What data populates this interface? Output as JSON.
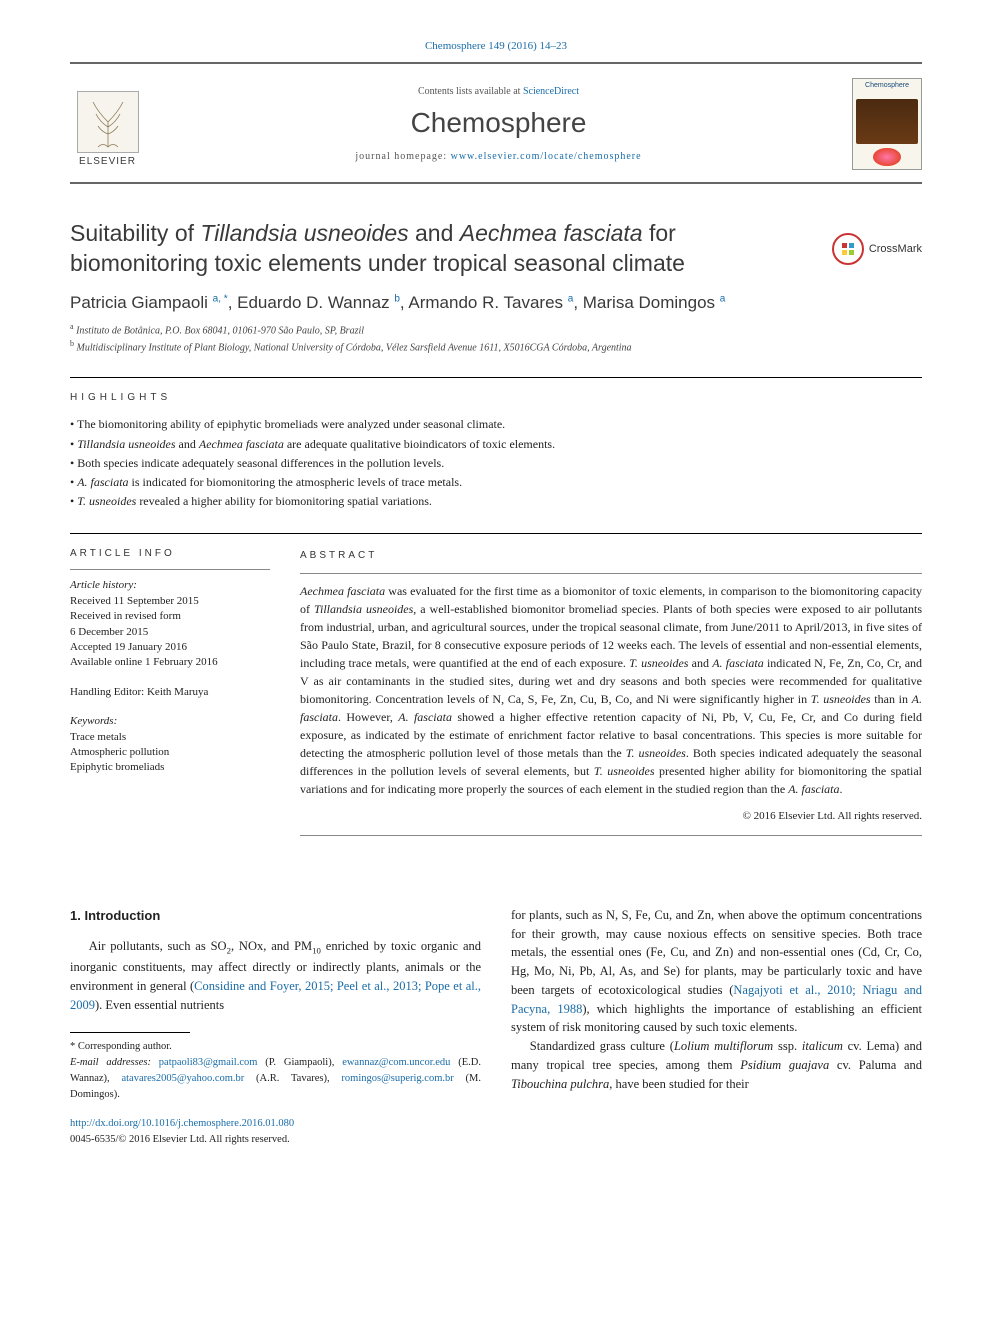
{
  "citation": "Chemosphere 149 (2016) 14–23",
  "masthead": {
    "contents_prefix": "Contents lists available at ",
    "contents_link": "ScienceDirect",
    "journal": "Chemosphere",
    "homepage_prefix": "journal homepage: ",
    "homepage_url": "www.elsevier.com/locate/chemosphere",
    "publisher_logo_text": "ELSEVIER",
    "cover_label": "Chemosphere"
  },
  "title": {
    "prefix": "Suitability of ",
    "sp1": "Tillandsia usneoides",
    "mid": " and ",
    "sp2": "Aechmea fasciata",
    "suffix": " for biomonitoring toxic elements under tropical seasonal climate"
  },
  "crossmark_label": "CrossMark",
  "authors_html": "Patricia Giampaoli <sup>a, *</sup>, Eduardo D. Wannaz <sup>b</sup>, Armando R. Tavares <sup>a</sup>, Marisa Domingos <sup>a</sup>",
  "affiliations": [
    {
      "sup": "a",
      "text": "Instituto de Botânica, P.O. Box 68041, 01061-970 São Paulo, SP, Brazil"
    },
    {
      "sup": "b",
      "text": "Multidisciplinary Institute of Plant Biology, National University of Córdoba, Vélez Sarsfield Avenue 1611, X5016CGA Córdoba, Argentina"
    }
  ],
  "highlights": {
    "heading": "HIGHLIGHTS",
    "items": [
      {
        "pre": "The biomonitoring ability of epiphytic bromeliads were analyzed under seasonal climate.",
        "ital": "",
        "post": ""
      },
      {
        "pre": "",
        "ital": "Tillandsia usneoides",
        "post": " and ",
        "ital2": "Aechmea fasciata",
        "post2": " are adequate qualitative bioindicators of toxic elements."
      },
      {
        "pre": "Both species indicate adequately seasonal differences in the pollution levels.",
        "ital": "",
        "post": ""
      },
      {
        "pre": "",
        "ital": "A. fasciata",
        "post": " is indicated for biomonitoring the atmospheric levels of trace metals."
      },
      {
        "pre": "",
        "ital": "T. usneoides",
        "post": " revealed a higher ability for biomonitoring spatial variations."
      }
    ]
  },
  "article_info": {
    "heading": "ARTICLE INFO",
    "history_title": "Article history:",
    "history": [
      "Received 11 September 2015",
      "Received in revised form",
      "6 December 2015",
      "Accepted 19 January 2016",
      "Available online 1 February 2016"
    ],
    "handling_editor_label": "Handling Editor: Keith Maruya",
    "keywords_title": "Keywords:",
    "keywords": [
      "Trace metals",
      "Atmospheric pollution",
      "Epiphytic bromeliads"
    ]
  },
  "abstract": {
    "heading": "ABSTRACT",
    "text_parts": [
      {
        "ital": "Aechmea fasciata",
        "t": " was evaluated for the first time as a biomonitor of toxic elements, in comparison to the biomonitoring capacity of "
      },
      {
        "ital": "Tillandsia usneoides",
        "t": ", a well-established biomonitor bromeliad species. Plants of both species were exposed to air pollutants from industrial, urban, and agricultural sources, under the tropical seasonal climate, from June/2011 to April/2013, in five sites of São Paulo State, Brazil, for 8 consecutive exposure periods of 12 weeks each. The levels of essential and non-essential elements, including trace metals, were quantified at the end of each exposure. "
      },
      {
        "ital": "T. usneoides",
        "t": " and "
      },
      {
        "ital": "A. fasciata",
        "t": " indicated N, Fe, Zn, Co, Cr, and V as air contaminants in the studied sites, during wet and dry seasons and both species were recommended for qualitative biomonitoring. Concentration levels of N, Ca, S, Fe, Zn, Cu, B, Co, and Ni were significantly higher in "
      },
      {
        "ital": "T. usneoides",
        "t": " than in "
      },
      {
        "ital": "A. fasciata",
        "t": ". However, "
      },
      {
        "ital": "A. fasciata",
        "t": " showed a higher effective retention capacity of Ni, Pb, V, Cu, Fe, Cr, and Co during field exposure, as indicated by the estimate of enrichment factor relative to basal concentrations. This species is more suitable for detecting the atmospheric pollution level of those metals than the "
      },
      {
        "ital": "T. usneoides",
        "t": ". Both species indicated adequately the seasonal differences in the pollution levels of several elements, but "
      },
      {
        "ital": "T. usneoides",
        "t": " presented higher ability for biomonitoring the spatial variations and for indicating more properly the sources of each element in the studied region than the "
      },
      {
        "ital": "A. fasciata",
        "t": "."
      }
    ],
    "copyright": "© 2016 Elsevier Ltd. All rights reserved."
  },
  "intro": {
    "heading": "1.  Introduction",
    "left_para_pre": "Air pollutants, such as SO",
    "left_para_sub1": "2",
    "left_para_mid1": ", NOx, and PM",
    "left_para_sub2": "10",
    "left_para_mid2": " enriched by toxic organic and inorganic constituents, may affect directly or indirectly plants, animals or the environment in general (",
    "left_cite": "Considine and Foyer, 2015; Peel et al., 2013; Pope et al., 2009",
    "left_para_post": "). Even essential nutrients",
    "right_para1_pre": "for plants, such as N, S, Fe, Cu, and Zn, when above the optimum concentrations for their growth, may cause noxious effects on sensitive species. Both trace metals, the essential ones (Fe, Cu, and Zn) and non-essential ones (Cd, Cr, Co, Hg, Mo, Ni, Pb, Al, As, and Se) for plants, may be particularly toxic and have been targets of ecotoxicological studies (",
    "right_cite": "Nagajyoti et al., 2010; Nriagu and Pacyna, 1988",
    "right_para1_post": "), which highlights the importance of establishing an efficient system of risk monitoring caused by such toxic elements.",
    "right_para2_pre": "Standardized grass culture (",
    "right_para2_sp1": "Lolium multiflorum",
    "right_para2_mid1": " ssp. ",
    "right_para2_sp2": "italicum",
    "right_para2_mid2": " cv. Lema) and many tropical tree species, among them ",
    "right_para2_sp3": "Psidium guajava",
    "right_para2_mid3": " cv. Paluma and ",
    "right_para2_sp4": "Tibouchina pulchra",
    "right_para2_post": ", have been studied for their"
  },
  "footnotes": {
    "corresponding": "* Corresponding author.",
    "email_label": "E-mail addresses:",
    "emails": [
      {
        "addr": "patpaoli83@gmail.com",
        "who": "(P. Giampaoli)"
      },
      {
        "addr": "ewannaz@com.uncor.edu",
        "who": "(E.D. Wannaz)"
      },
      {
        "addr": "atavares2005@yahoo.com.br",
        "who": "(A.R. Tavares)"
      },
      {
        "addr": "romingos@superig.com.br",
        "who": "(M. Domingos)"
      }
    ]
  },
  "doi": {
    "url": "http://dx.doi.org/10.1016/j.chemosphere.2016.01.080",
    "issn_line": "0045-6535/© 2016 Elsevier Ltd. All rights reserved."
  },
  "colors": {
    "link": "#1a6ca8",
    "text": "#222222",
    "rule": "#000000"
  }
}
